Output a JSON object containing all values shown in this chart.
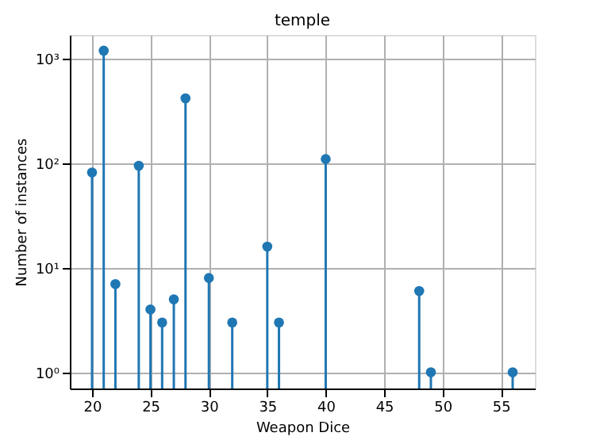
{
  "chart_data": {
    "type": "lollipop",
    "title": "temple",
    "xlabel": "Weapon Dice",
    "ylabel": "Number of instances",
    "x": [
      20,
      21,
      22,
      24,
      25,
      26,
      27,
      28,
      30,
      32,
      35,
      36,
      40,
      48,
      49,
      56
    ],
    "series": [
      {
        "color": "#1f77b4",
        "values": [
          82,
          1200,
          7,
          95,
          4,
          3,
          5,
          420,
          8,
          3,
          16,
          3,
          110,
          6,
          1,
          1
        ]
      }
    ],
    "xlim": [
      18.1,
      57.9
    ],
    "xticks": [
      20,
      25,
      30,
      35,
      40,
      45,
      50,
      55
    ],
    "ylim": [
      0.7,
      1700
    ],
    "yticks": [
      {
        "value": 1,
        "label": "10⁰"
      },
      {
        "value": 10,
        "label": "10¹"
      },
      {
        "value": 100,
        "label": "10²"
      },
      {
        "value": 1000,
        "label": "10³"
      }
    ],
    "log": true,
    "grid": true,
    "marker": "circle"
  }
}
